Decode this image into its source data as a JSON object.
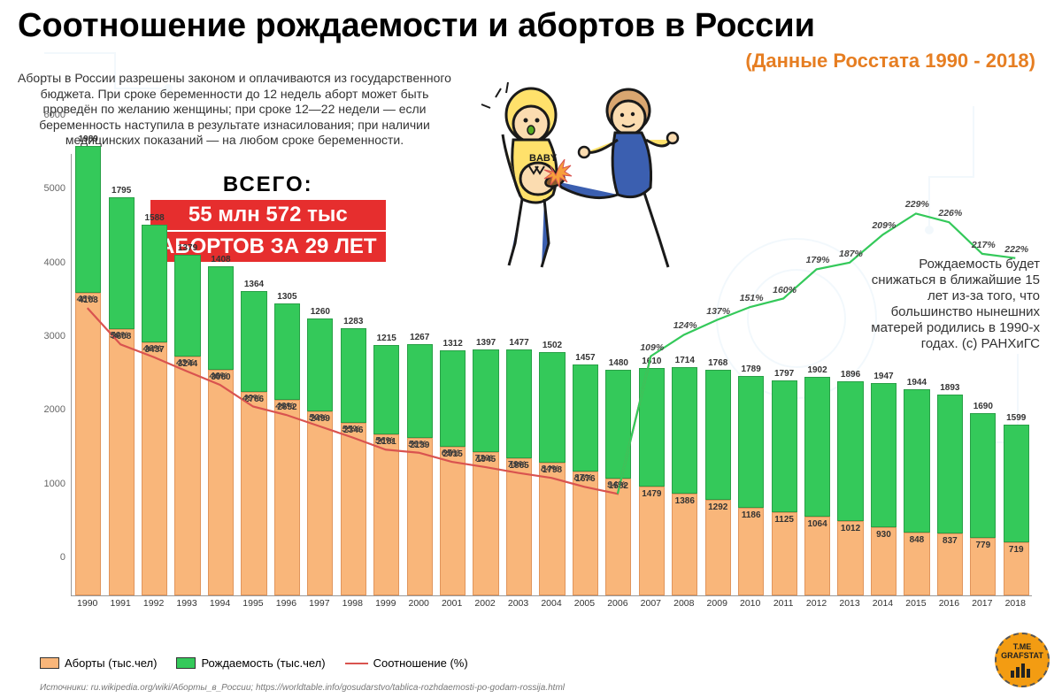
{
  "title": "Соотношение рождаемости и абортов в России",
  "subtitle": "(Данные Росстата 1990 - 2018)",
  "intro": "Аборты в России разрешены законом и оплачиваются из государственного бюджета. При сроке беременности до 12 недель аборт может быть проведён по желанию женщины; при сроке 12—22 недели — если беременность наступила в результате изнасилования; при наличии медицинских показаний — на любом сроке беременности.",
  "total": {
    "label": "ВСЕГО:",
    "line1": "55 млн 572  тыс",
    "line2": "АБОРТОВ ЗА 29 ЛЕТ"
  },
  "right_note": "Рождаемость будет снижаться в ближайшие 15 лет из-за того, что большинство нынешних матерей родились в 1990-х годах. (с) РАНХиГС",
  "legend": {
    "a": "Аборты (тыс.чел)",
    "b": "Рождаемость (тыс.чел)",
    "c": "Соотношение (%)"
  },
  "sources": "Источники: ru.wikipedia.org/wiki/Аборты_в_России; https://worldtable.info/gosudarstvo/tablica-rozhdaemosti-po-godam-rossija.html",
  "badge": {
    "line1": "T.ME",
    "line2": "GRAFSTAT"
  },
  "colors": {
    "abortions": "#f9b67a",
    "abortions_border": "#e0955c",
    "births": "#34c95a",
    "births_border": "#28a046",
    "ratio_low": "#d9534f",
    "ratio_high": "#34c95a",
    "bg": "#ffffff",
    "title": "#000000",
    "subtitle_accent": "#e67e22",
    "total_bg": "#e62e2e"
  },
  "chart": {
    "type": "stacked-bar-with-line",
    "ymax": 6000,
    "ytick_step": 1000,
    "bar_gap_ratio": 0.22,
    "years": [
      1990,
      1991,
      1992,
      1993,
      1994,
      1995,
      1996,
      1997,
      1998,
      1999,
      2000,
      2001,
      2002,
      2003,
      2004,
      2005,
      2006,
      2007,
      2008,
      2009,
      2010,
      2011,
      2012,
      2013,
      2014,
      2015,
      2016,
      2017,
      2018
    ],
    "abortions": [
      4103,
      3608,
      3437,
      3244,
      3060,
      2766,
      2652,
      2499,
      2346,
      2181,
      2139,
      2015,
      1945,
      1865,
      1798,
      1676,
      1582,
      1479,
      1386,
      1292,
      1186,
      1125,
      1064,
      1012,
      930,
      848,
      837,
      779,
      719
    ],
    "births": [
      1989,
      1795,
      1588,
      1379,
      1408,
      1364,
      1305,
      1260,
      1283,
      1215,
      1267,
      1312,
      1397,
      1477,
      1502,
      1457,
      1480,
      1610,
      1714,
      1768,
      1789,
      1797,
      1902,
      1896,
      1947,
      1944,
      1893,
      1690,
      1599
    ],
    "ratio_pct": [
      48,
      50,
      46,
      43,
      46,
      49,
      49,
      50,
      55,
      56,
      59,
      65,
      72,
      79,
      84,
      87,
      94,
      109,
      124,
      137,
      151,
      160,
      179,
      187,
      209,
      229,
      226,
      217,
      222
    ]
  }
}
